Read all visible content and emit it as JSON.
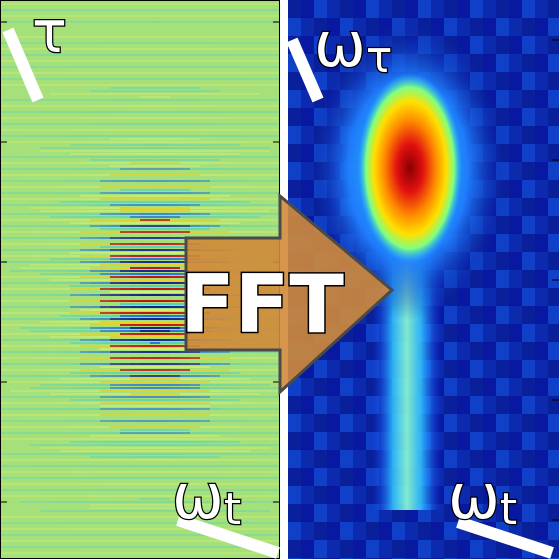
{
  "left_panel": {
    "label_top": "τ",
    "label_bottom": "ω",
    "label_bottom_sub": "t"
  },
  "right_panel": {
    "label_top": "ω",
    "label_top_sub": "τ",
    "label_bottom": "ω",
    "label_bottom_sub": "t"
  },
  "arrow": {
    "label": "FFT",
    "fill_color": "#d08a3a"
  },
  "colors": {
    "background_left": "#a6e07a",
    "background_right": "#0a1f9a",
    "peak": "#a00000"
  }
}
